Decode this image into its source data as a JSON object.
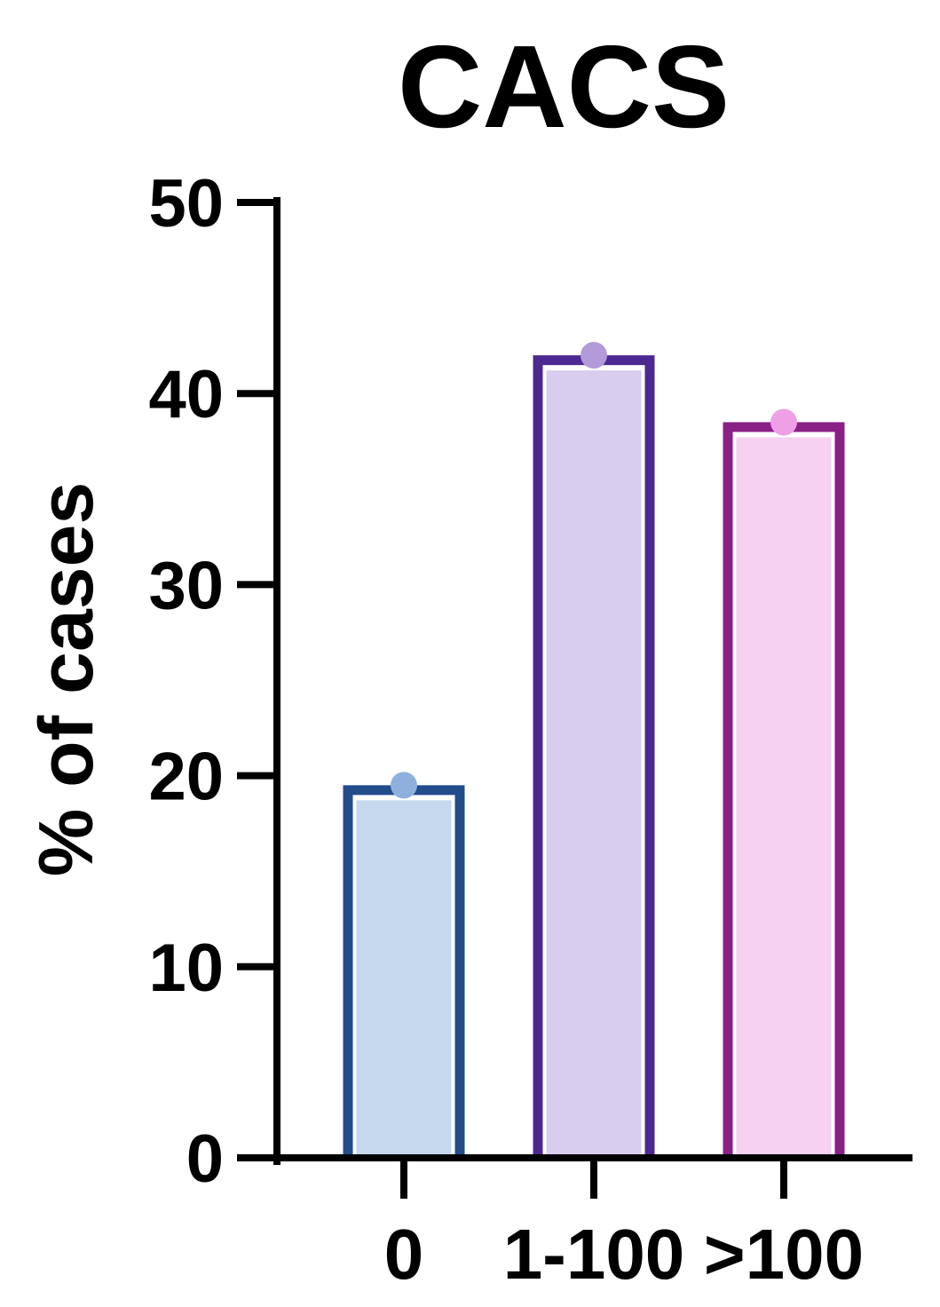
{
  "chart_data": {
    "type": "bar",
    "title": "CACS",
    "xlabel": "",
    "ylabel": "% of cases",
    "ylim": [
      0,
      50
    ],
    "yticks": [
      "0",
      "10",
      "20",
      "30",
      "40",
      "50"
    ],
    "categories": [
      "0",
      "1-100",
      ">100"
    ],
    "values": [
      19.5,
      42.0,
      38.5
    ],
    "grid": false,
    "legend": "none",
    "colors": {
      "fills": [
        "#c5d8ee",
        "#d8cdee",
        "#f6d1f1"
      ],
      "strokes": [
        "#234c8a",
        "#4e2891",
        "#8a1f86"
      ],
      "points": [
        "#8fb0dd",
        "#b39ad8",
        "#ef9fe5"
      ],
      "axis": "#000000"
    }
  }
}
